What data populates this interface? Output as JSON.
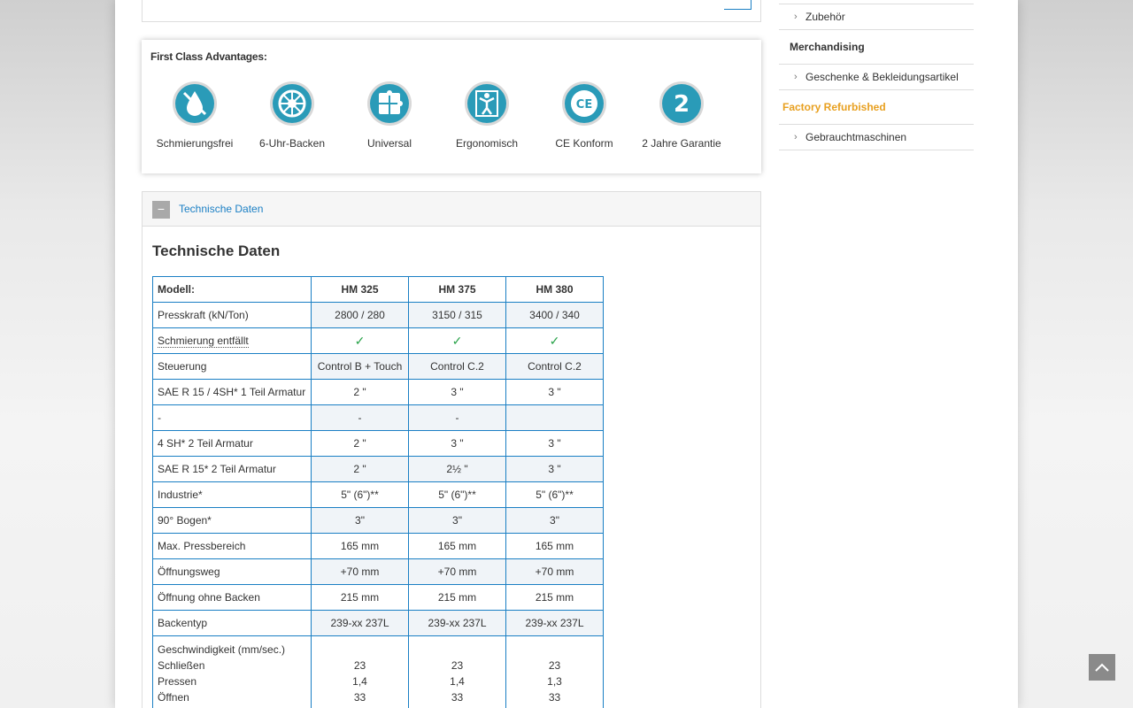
{
  "advantages": {
    "title": "First Class Advantages:",
    "items": [
      {
        "label": "Schmierungsfrei",
        "icon": "drop-icon"
      },
      {
        "label": "6-Uhr-Backen",
        "icon": "wheel-icon"
      },
      {
        "label": "Universal",
        "icon": "puzzle-icon"
      },
      {
        "label": "Ergonomisch",
        "icon": "person-icon"
      },
      {
        "label": "CE Konform",
        "icon": "ce-icon"
      },
      {
        "label": "2 Jahre Garantie",
        "icon": "warranty-2-icon"
      }
    ]
  },
  "panel": {
    "collapse_symbol": "−",
    "title": "Technische Daten",
    "section_title": "Technische Daten"
  },
  "table": {
    "header": [
      "Modell:",
      "HM 325",
      "HM 375",
      "HM 380"
    ],
    "rows": [
      [
        "Presskraft (kN/Ton)",
        "2800 / 280",
        "3150 / 315",
        "3400 / 340"
      ],
      [
        "Schmierung entfällt",
        "✓",
        "✓",
        "✓"
      ],
      [
        "Steuerung",
        "Control B + Touch",
        "Control C.2",
        "Control C.2"
      ],
      [
        "SAE R 15 / 4SH* 1 Teil Armatur",
        "2 \"",
        "3 \"",
        "3 \""
      ],
      [
        "-",
        "-",
        "-",
        ""
      ],
      [
        "4 SH* 2 Teil Armatur",
        "2 \"",
        "3 \"",
        "3 \""
      ],
      [
        "SAE R 15* 2 Teil Armatur",
        "2 \"",
        "2½ \"",
        "3 \""
      ],
      [
        "Industrie*",
        "5\" (6\")**",
        "5\" (6\")**",
        "5\" (6\")**"
      ],
      [
        "90° Bogen*",
        "3\"",
        "3\"",
        "3\""
      ],
      [
        "Max. Pressbereich",
        "165 mm",
        "165 mm",
        "165 mm"
      ],
      [
        "Öffnungsweg",
        "+70 mm",
        "+70 mm",
        "+70 mm"
      ],
      [
        "Öffnung ohne Backen",
        "215 mm",
        "215 mm",
        "215 mm"
      ],
      [
        "Backentyp",
        "239-xx 237L",
        "239-xx 237L",
        "239-xx 237L"
      ]
    ],
    "speed": {
      "labels": [
        "Geschwindigkeit (mm/sec.)",
        "Schließen",
        "Pressen",
        "Öffnen"
      ],
      "hm325": [
        "",
        "23",
        "1,4",
        "33"
      ],
      "hm375": [
        "",
        "23",
        "1,4",
        "33"
      ],
      "hm380": [
        "",
        "23",
        "1,3",
        "33"
      ]
    }
  },
  "sidebar": {
    "items": [
      {
        "type": "sub",
        "label": "Zubehör"
      },
      {
        "type": "head",
        "label": "Merchandising"
      },
      {
        "type": "sub",
        "label": "Geschenke & Bekleidungsartikel"
      },
      {
        "type": "head-orange",
        "label": "Factory Refurbished"
      },
      {
        "type": "sub",
        "label": "Gebrauchtmaschinen"
      }
    ],
    "chevron": "›"
  },
  "scroll_top_icon": "chevron-up-icon",
  "colors": {
    "accent": "#1a7fc4",
    "icon_teal": "#2a9bb8",
    "orange": "#e8a020",
    "check": "#2aa34a"
  }
}
